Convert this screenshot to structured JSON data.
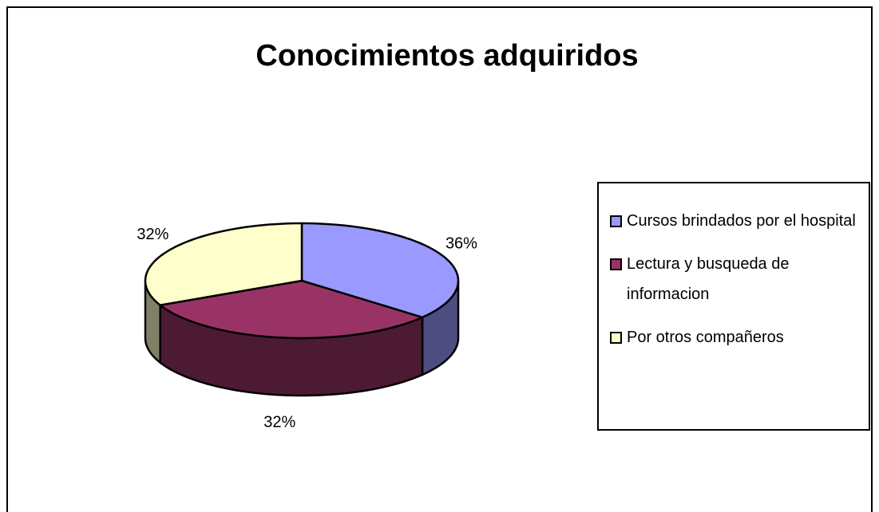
{
  "chart_data": {
    "type": "pie",
    "title": "Conocimientos adquiridos",
    "categories": [
      "Cursos brindados por el hospital",
      "Lectura y busqueda de informacion",
      "Por otros compañeros"
    ],
    "values": [
      36,
      32,
      32
    ],
    "value_labels": [
      "36%",
      "32%",
      "32%"
    ],
    "colors": [
      "#9999ff",
      "#993366",
      "#ffffcc"
    ],
    "side_colors": [
      "#4d4d80",
      "#4d1a33",
      "#808066"
    ],
    "legend": "right"
  }
}
